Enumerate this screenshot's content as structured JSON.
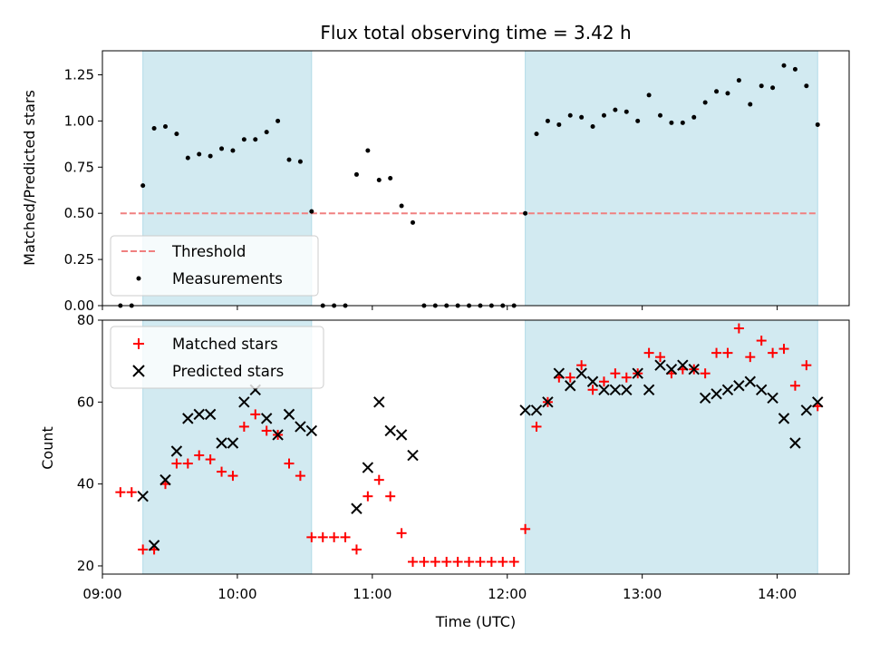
{
  "chart_data": [
    {
      "type": "scatter",
      "title": "Flux total observing time = 3.42 h",
      "xlabel": "",
      "ylabel": "Matched/Predicted stars",
      "xlim": [
        "09:00",
        "14:32"
      ],
      "ylim": [
        0,
        1.38
      ],
      "yticks": [
        0.0,
        0.25,
        0.5,
        0.75,
        1.0,
        1.25
      ],
      "ytick_labels": [
        "0.00",
        "0.25",
        "0.50",
        "0.75",
        "1.00",
        "1.25"
      ],
      "xticks": [
        "09:00",
        "10:00",
        "11:00",
        "12:00",
        "13:00",
        "14:00"
      ],
      "xtick_labels_visible": false,
      "shaded_intervals": [
        [
          "09:18",
          "10:33"
        ],
        [
          "12:08",
          "14:18"
        ]
      ],
      "shade_color": "#add8e6",
      "threshold": {
        "name": "Threshold",
        "value": 0.5,
        "x_range": [
          "09:08",
          "14:18"
        ],
        "color": "#f08080",
        "style": "dashed"
      },
      "legend_position": "lower-left",
      "series": [
        {
          "name": "Measurements",
          "marker": "dot",
          "color": "#000000",
          "x": [
            "09:08",
            "09:13",
            "09:18",
            "09:23",
            "09:28",
            "09:33",
            "09:38",
            "09:43",
            "09:48",
            "09:53",
            "09:58",
            "10:03",
            "10:08",
            "10:13",
            "10:18",
            "10:23",
            "10:28",
            "10:33",
            "10:38",
            "10:43",
            "10:48",
            "10:53",
            "10:58",
            "11:03",
            "11:08",
            "11:13",
            "11:18",
            "11:23",
            "11:28",
            "11:33",
            "11:38",
            "11:43",
            "11:48",
            "11:53",
            "11:58",
            "12:03",
            "12:08",
            "12:13",
            "12:18",
            "12:23",
            "12:28",
            "12:33",
            "12:38",
            "12:43",
            "12:48",
            "12:53",
            "12:58",
            "13:03",
            "13:08",
            "13:13",
            "13:18",
            "13:23",
            "13:28",
            "13:33",
            "13:38",
            "13:43",
            "13:48",
            "13:53",
            "13:58",
            "14:03",
            "14:08",
            "14:13",
            "14:18"
          ],
          "y": [
            0,
            0,
            0.65,
            0.96,
            0.97,
            0.93,
            0.8,
            0.82,
            0.81,
            0.85,
            0.84,
            0.9,
            0.9,
            0.94,
            1.0,
            0.79,
            0.78,
            0.51,
            0,
            0,
            0,
            0.71,
            0.84,
            0.68,
            0.69,
            0.54,
            0.45,
            0,
            0,
            0,
            0,
            0,
            0,
            0,
            0,
            0,
            0.5,
            0.93,
            1.0,
            0.98,
            1.03,
            1.02,
            0.97,
            1.03,
            1.06,
            1.05,
            1.0,
            1.14,
            1.03,
            0.99,
            0.99,
            1.02,
            1.1,
            1.16,
            1.15,
            1.22,
            1.09,
            1.19,
            1.18,
            1.3,
            1.28,
            1.19,
            0.98
          ]
        }
      ]
    },
    {
      "type": "scatter",
      "title": "",
      "xlabel": "Time (UTC)",
      "ylabel": "Count",
      "xlim": [
        "09:00",
        "14:32"
      ],
      "ylim": [
        18,
        80
      ],
      "yticks": [
        20,
        40,
        60,
        80
      ],
      "xticks": [
        "09:00",
        "10:00",
        "11:00",
        "12:00",
        "13:00",
        "14:00"
      ],
      "shaded_intervals": [
        [
          "09:18",
          "10:33"
        ],
        [
          "12:08",
          "14:18"
        ]
      ],
      "shade_color": "#add8e6",
      "legend_position": "upper-left",
      "series": [
        {
          "name": "Matched stars",
          "marker": "plus",
          "color": "#ff0000",
          "x": [
            "09:08",
            "09:13",
            "09:18",
            "09:23",
            "09:28",
            "09:33",
            "09:38",
            "09:43",
            "09:48",
            "09:53",
            "09:58",
            "10:03",
            "10:08",
            "10:13",
            "10:18",
            "10:23",
            "10:28",
            "10:33",
            "10:38",
            "10:43",
            "10:48",
            "10:53",
            "10:58",
            "11:03",
            "11:08",
            "11:13",
            "11:18",
            "11:23",
            "11:28",
            "11:33",
            "11:38",
            "11:43",
            "11:48",
            "11:53",
            "11:58",
            "12:03",
            "12:08",
            "12:13",
            "12:18",
            "12:23",
            "12:28",
            "12:33",
            "12:38",
            "12:43",
            "12:48",
            "12:53",
            "12:58",
            "13:03",
            "13:08",
            "13:13",
            "13:18",
            "13:23",
            "13:28",
            "13:33",
            "13:38",
            "13:43",
            "13:48",
            "13:53",
            "13:58",
            "14:03",
            "14:08",
            "14:13",
            "14:18"
          ],
          "y": [
            38,
            38,
            24,
            24,
            40,
            45,
            45,
            47,
            46,
            43,
            42,
            54,
            57,
            53,
            52,
            45,
            42,
            27,
            27,
            27,
            27,
            24,
            37,
            41,
            37,
            28,
            21,
            21,
            21,
            21,
            21,
            21,
            21,
            21,
            21,
            21,
            29,
            54,
            60,
            66,
            66,
            69,
            63,
            65,
            67,
            66,
            67,
            72,
            71,
            67,
            68,
            68,
            67,
            72,
            72,
            78,
            71,
            75,
            72,
            73,
            64,
            69,
            59
          ]
        },
        {
          "name": "Predicted stars",
          "marker": "x",
          "color": "#000000",
          "x": [
            "09:18",
            "09:23",
            "09:28",
            "09:33",
            "09:38",
            "09:43",
            "09:48",
            "09:53",
            "09:58",
            "10:03",
            "10:08",
            "10:13",
            "10:18",
            "10:23",
            "10:28",
            "10:33",
            "10:53",
            "10:58",
            "11:03",
            "11:08",
            "11:13",
            "11:18",
            "12:08",
            "12:13",
            "12:18",
            "12:23",
            "12:28",
            "12:33",
            "12:38",
            "12:43",
            "12:48",
            "12:53",
            "12:58",
            "13:03",
            "13:08",
            "13:13",
            "13:18",
            "13:23",
            "13:28",
            "13:33",
            "13:38",
            "13:43",
            "13:48",
            "13:53",
            "13:58",
            "14:03",
            "14:08",
            "14:13",
            "14:18"
          ],
          "y": [
            37,
            25,
            41,
            48,
            56,
            57,
            57,
            50,
            50,
            60,
            63,
            56,
            52,
            57,
            54,
            53,
            34,
            44,
            60,
            53,
            52,
            47,
            58,
            58,
            60,
            67,
            64,
            67,
            65,
            63,
            63,
            63,
            67,
            63,
            69,
            68,
            69,
            68,
            61,
            62,
            63,
            64,
            65,
            63,
            61,
            56,
            50,
            58,
            60
          ]
        }
      ]
    }
  ]
}
